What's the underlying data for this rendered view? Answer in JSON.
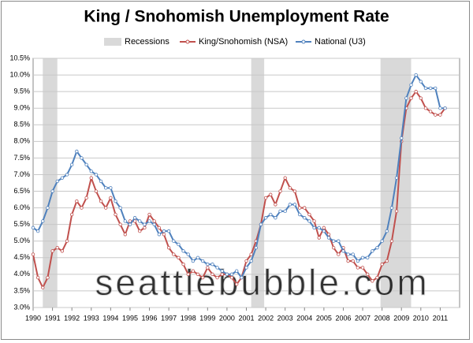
{
  "chart_data": {
    "type": "line",
    "title": "King / Snohomish Unemployment Rate",
    "watermark": "seattlebubble.com",
    "x": [
      1990,
      1990.25,
      1990.5,
      1990.75,
      1991,
      1991.25,
      1991.5,
      1991.75,
      1992,
      1992.25,
      1992.5,
      1992.75,
      1993,
      1993.25,
      1993.5,
      1993.75,
      1994,
      1994.25,
      1994.5,
      1994.75,
      1995,
      1995.25,
      1995.5,
      1995.75,
      1996,
      1996.25,
      1996.5,
      1996.75,
      1997,
      1997.25,
      1997.5,
      1997.75,
      1998,
      1998.25,
      1998.5,
      1998.75,
      1999,
      1999.25,
      1999.5,
      1999.75,
      2000,
      2000.25,
      2000.5,
      2000.75,
      2001,
      2001.25,
      2001.5,
      2001.75,
      2002,
      2002.25,
      2002.5,
      2002.75,
      2003,
      2003.25,
      2003.5,
      2003.75,
      2004,
      2004.25,
      2004.5,
      2004.75,
      2005,
      2005.25,
      2005.5,
      2005.75,
      2006,
      2006.25,
      2006.5,
      2006.75,
      2007,
      2007.25,
      2007.5,
      2007.75,
      2008,
      2008.25,
      2008.5,
      2008.75,
      2009,
      2009.25,
      2009.5,
      2009.75,
      2010,
      2010.25,
      2010.5,
      2010.75,
      2011,
      2011.25
    ],
    "recessions": {
      "name": "Recessions",
      "color": "#d9d9d9",
      "spans": [
        [
          1990.5,
          1991.25
        ],
        [
          2001.25,
          2001.92
        ],
        [
          2007.92,
          2009.5
        ]
      ]
    },
    "series": [
      {
        "name": "King/Snohomish (NSA)",
        "color": "#c0504d",
        "values": [
          4.6,
          3.9,
          3.6,
          3.9,
          4.7,
          4.8,
          4.7,
          5.0,
          5.8,
          6.2,
          6.0,
          6.3,
          6.9,
          6.5,
          6.2,
          6.0,
          6.3,
          5.8,
          5.5,
          5.2,
          5.6,
          5.6,
          5.3,
          5.4,
          5.8,
          5.6,
          5.4,
          5.2,
          4.8,
          4.6,
          4.5,
          4.3,
          4.0,
          4.1,
          4.0,
          3.9,
          4.2,
          4.0,
          3.9,
          4.0,
          4.0,
          3.9,
          3.7,
          3.9,
          4.4,
          4.6,
          5.0,
          5.5,
          6.3,
          6.4,
          6.1,
          6.5,
          6.9,
          6.6,
          6.5,
          6.0,
          6.0,
          5.8,
          5.6,
          5.1,
          5.4,
          5.2,
          4.8,
          4.6,
          4.8,
          4.4,
          4.4,
          4.2,
          4.2,
          4.0,
          3.8,
          3.9,
          4.3,
          4.4,
          5.0,
          5.9,
          8.0,
          9.0,
          9.3,
          9.5,
          9.3,
          9.0,
          8.9,
          8.8,
          8.8,
          9.0
        ]
      },
      {
        "name": "National (U3)",
        "color": "#4f81bd",
        "values": [
          5.4,
          5.3,
          5.6,
          6.0,
          6.5,
          6.8,
          6.9,
          7.0,
          7.3,
          7.7,
          7.5,
          7.3,
          7.1,
          7.0,
          6.8,
          6.6,
          6.6,
          6.2,
          6.0,
          5.6,
          5.5,
          5.7,
          5.6,
          5.5,
          5.6,
          5.5,
          5.2,
          5.3,
          5.3,
          5.0,
          4.9,
          4.7,
          4.6,
          4.4,
          4.5,
          4.4,
          4.3,
          4.3,
          4.2,
          4.1,
          4.0,
          4.0,
          4.1,
          3.9,
          4.2,
          4.4,
          4.8,
          5.5,
          5.7,
          5.8,
          5.7,
          5.9,
          5.9,
          6.1,
          6.1,
          5.8,
          5.7,
          5.6,
          5.4,
          5.4,
          5.3,
          5.1,
          5.0,
          5.0,
          4.7,
          4.6,
          4.6,
          4.4,
          4.5,
          4.5,
          4.7,
          4.8,
          5.0,
          5.3,
          6.0,
          6.9,
          8.1,
          9.3,
          9.7,
          10.0,
          9.8,
          9.6,
          9.6,
          9.6,
          9.0,
          9.0
        ]
      }
    ],
    "xlim": [
      1990,
      2012
    ],
    "xticks": [
      1990,
      1991,
      1992,
      1993,
      1994,
      1995,
      1996,
      1997,
      1998,
      1999,
      2000,
      2001,
      2002,
      2003,
      2004,
      2005,
      2006,
      2007,
      2008,
      2009,
      2010,
      2011
    ],
    "ylim": [
      3,
      10.5
    ],
    "yticks": [
      {
        "value": 3,
        "label": "3.0%"
      },
      {
        "value": 3.5,
        "label": "3.5%"
      },
      {
        "value": 4,
        "label": "4.0%"
      },
      {
        "value": 4.5,
        "label": "4.5%"
      },
      {
        "value": 5,
        "label": "5.0%"
      },
      {
        "value": 5.5,
        "label": "5.5%"
      },
      {
        "value": 6,
        "label": "6.0%"
      },
      {
        "value": 6.5,
        "label": "6.5%"
      },
      {
        "value": 7,
        "label": "7.0%"
      },
      {
        "value": 7.5,
        "label": "7.5%"
      },
      {
        "value": 8,
        "label": "8.0%"
      },
      {
        "value": 8.5,
        "label": "8.5%"
      },
      {
        "value": 9,
        "label": "9.0%"
      },
      {
        "value": 9.5,
        "label": "9.5%"
      },
      {
        "value": 10,
        "label": "10.0%"
      },
      {
        "value": 10.5,
        "label": "10.5%"
      }
    ],
    "grid": true
  }
}
